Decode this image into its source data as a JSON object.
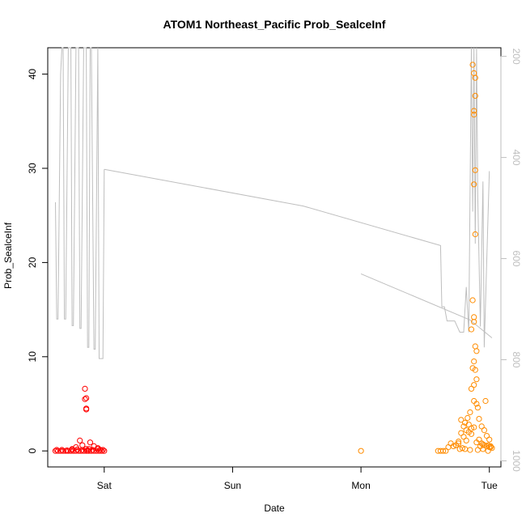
{
  "chart_data": {
    "type": "scatter",
    "title": "ATOM1 Northeast_Pacific Prob_SealceInf",
    "xlabel": "Date",
    "ylabel": "Prob_SealceInf",
    "x_ticks": [
      "Sat",
      "Sun",
      "Mon",
      "Tue"
    ],
    "x_tick_days": [
      1,
      2,
      3,
      4
    ],
    "xlim": [
      0.56,
      4.09
    ],
    "ylim": [
      -1.7,
      42.8
    ],
    "y_ticks": [
      0,
      10,
      20,
      30,
      40
    ],
    "y2_ticks": [
      200,
      400,
      600,
      800,
      1000
    ],
    "y2_range_at_ylim": [
      -1.7,
      42.8
    ],
    "y2lim": [
      1012,
      183
    ],
    "grid": false,
    "colors": {
      "early_points": "#ff0000",
      "late_points": "#ff8c00",
      "depth_line": "#bebebe",
      "axis": "#000000",
      "right_axis": "#bebebe"
    },
    "series": [
      {
        "marker": "circle",
        "color": "#ff0000",
        "x": [
          0.62,
          0.64,
          0.66,
          0.68,
          0.7,
          0.72,
          0.74,
          0.76,
          0.78,
          0.8,
          0.82,
          0.84,
          0.86,
          0.88,
          0.9,
          0.92,
          0.94,
          0.96,
          0.98,
          1.0,
          0.63,
          0.67,
          0.71,
          0.75,
          0.79,
          0.83,
          0.87,
          0.91,
          0.95,
          0.99,
          0.85,
          0.85,
          0.86,
          0.86,
          0.86,
          0.86,
          0.81,
          0.89,
          0.78,
          0.92,
          0.95,
          0.88,
          0.83,
          0.75,
          0.97
        ],
        "y": [
          0,
          0,
          0,
          0,
          0,
          0,
          0,
          0,
          0,
          0,
          0,
          0,
          0,
          0,
          0,
          0,
          0,
          0,
          0,
          0,
          0.1,
          0.1,
          0.05,
          0.1,
          0.15,
          0.1,
          0.05,
          0.1,
          0.2,
          0.1,
          6.6,
          5.5,
          5.6,
          4.5,
          4.4,
          0.2,
          1.1,
          0.9,
          0.4,
          0.5,
          0.3,
          0.2,
          0.6,
          0.2,
          0.1
        ]
      },
      {
        "marker": "circle",
        "color": "#ff8c00",
        "x": [
          3.0,
          3.6,
          3.62,
          3.64,
          3.66,
          3.68,
          3.7,
          3.72,
          3.74,
          3.76,
          3.78,
          3.8,
          3.82,
          3.84,
          3.86,
          3.88,
          3.9,
          3.92,
          3.94,
          3.96,
          3.98,
          4.0,
          4.01,
          4.02,
          3.87,
          3.88,
          3.89,
          3.89,
          3.88,
          3.88,
          3.89,
          3.88,
          3.89,
          3.87,
          3.88,
          3.88,
          3.86,
          3.89,
          3.9,
          3.88,
          3.87,
          3.89,
          3.9,
          3.88,
          3.86,
          3.88,
          3.9,
          3.91,
          3.85,
          3.83,
          3.81,
          3.84,
          3.86,
          3.8,
          3.78,
          3.82,
          3.76,
          3.74,
          3.92,
          3.94,
          3.96,
          3.98,
          4.0,
          3.97,
          3.95,
          3.93,
          3.99,
          4.01,
          3.79,
          3.81,
          3.77,
          3.85,
          3.91,
          3.95,
          3.99
        ],
        "y": [
          0,
          0,
          0,
          0,
          0,
          0.4,
          0.8,
          0.5,
          0.6,
          1.0,
          3.3,
          1.5,
          2.2,
          2.0,
          1.8,
          2.5,
          0.9,
          1.2,
          0.8,
          0.6,
          0.5,
          0.4,
          0.5,
          0.3,
          41.0,
          40.1,
          39.6,
          37.7,
          36.1,
          35.7,
          29.8,
          28.3,
          23.0,
          16.0,
          14.2,
          13.7,
          12.9,
          11.1,
          10.6,
          9.5,
          8.8,
          8.6,
          7.6,
          7.0,
          6.6,
          5.3,
          5.0,
          4.6,
          4.1,
          3.5,
          3.0,
          2.8,
          2.4,
          2.6,
          1.9,
          1.1,
          0.8,
          0.6,
          3.4,
          2.6,
          2.2,
          1.6,
          1.2,
          5.3,
          0.7,
          0.5,
          0.6,
          0.4,
          0.3,
          0.2,
          0.2,
          0.1,
          0.1,
          0.2,
          0.0
        ]
      }
    ],
    "depth_line": {
      "axis": "right",
      "color": "#bebebe",
      "segments": [
        {
          "x": [
            0.62,
            0.63,
            0.64,
            0.66,
            0.67,
            0.68,
            0.69,
            0.7,
            0.72,
            0.74,
            0.75,
            0.76,
            0.78,
            0.8,
            0.81,
            0.82,
            0.84,
            0.86,
            0.87,
            0.88,
            0.89,
            0.9,
            0.92,
            0.93,
            0.95,
            0.96,
            0.98,
            0.99,
            1.0
          ],
          "y": [
            26.4,
            14.0,
            14.0,
            40.0,
            42.8,
            42.8,
            14.0,
            14.0,
            42.8,
            42.8,
            13.3,
            13.3,
            42.8,
            42.8,
            13.0,
            13.0,
            42.8,
            42.8,
            11.0,
            11.0,
            42.8,
            42.8,
            10.8,
            10.8,
            42.8,
            9.8,
            9.8,
            9.8,
            29.9
          ]
        },
        {
          "x": [
            1.0,
            2.55,
            3.62,
            3.63,
            3.65,
            3.67,
            3.73,
            3.77,
            3.78,
            3.8,
            3.82,
            3.84,
            3.86,
            3.87,
            3.88,
            3.89,
            3.9,
            3.91,
            3.93,
            3.95,
            3.96,
            4.0
          ],
          "y": [
            29.9,
            26.0,
            21.8,
            15.3,
            15.3,
            13.8,
            13.8,
            12.6,
            12.6,
            12.6,
            17.4,
            12.6,
            42.8,
            25.4,
            42.8,
            22.0,
            42.8,
            27.0,
            13.2,
            28.6,
            11.0,
            29.7
          ]
        },
        {
          "x": [
            3.0,
            3.85,
            4.02
          ],
          "y": [
            18.8,
            13.9,
            12.0
          ]
        }
      ]
    }
  }
}
